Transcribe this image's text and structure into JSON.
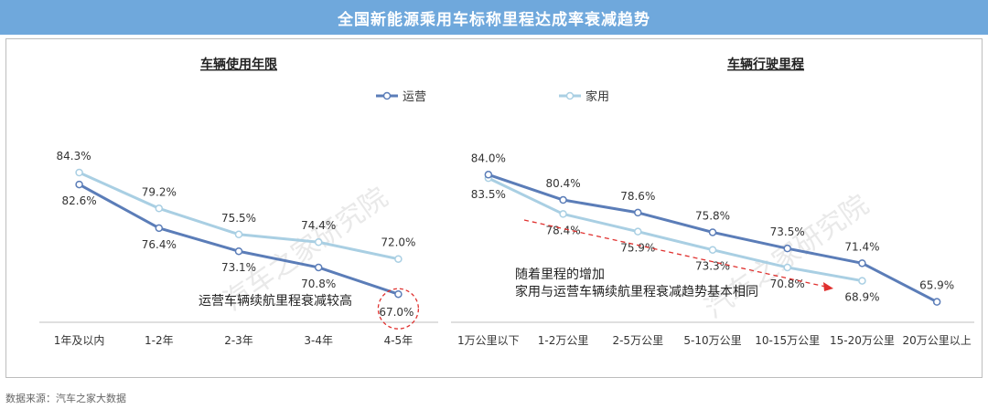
{
  "header": {
    "title": "全国新能源乘用车标称里程达成率衰减趋势"
  },
  "footer": {
    "source": "数据来源：汽车之家大数据"
  },
  "watermark": "汽车之家研究院",
  "legend": {
    "operating": "运营",
    "household": "家用"
  },
  "colors": {
    "operating": "#5b7db8",
    "household": "#a9cfe3",
    "title_bg": "#6fa8dc",
    "arrow": "#e0312f"
  },
  "chart_data": [
    {
      "type": "line",
      "title": "车辆使用年限",
      "categories": [
        "1年及以内",
        "1-2年",
        "2-3年",
        "3-4年",
        "4-5年"
      ],
      "series": [
        {
          "name": "运营",
          "values": [
            82.6,
            76.4,
            73.1,
            70.8,
            67.0
          ],
          "labels": [
            "82.6%",
            "76.4%",
            "73.1%",
            "70.8%",
            "67.0%"
          ]
        },
        {
          "name": "家用",
          "values": [
            84.3,
            79.2,
            75.5,
            74.4,
            72.0
          ],
          "labels": [
            "84.3%",
            "79.2%",
            "75.5%",
            "74.4%",
            "72.0%"
          ]
        }
      ],
      "annotation": "运营车辆续航里程衰减较高"
    },
    {
      "type": "line",
      "title": "车辆行驶里程",
      "categories": [
        "1万公里以下",
        "1-2万公里",
        "2-5万公里",
        "5-10万公里",
        "10-15万公里",
        "15-20万公里",
        "20万公里以上"
      ],
      "series": [
        {
          "name": "运营",
          "values": [
            84.0,
            80.4,
            78.6,
            75.8,
            73.5,
            71.4,
            65.9
          ],
          "labels": [
            "84.0%",
            "80.4%",
            "78.6%",
            "75.8%",
            "73.5%",
            "71.4%",
            "65.9%"
          ]
        },
        {
          "name": "家用",
          "values": [
            83.5,
            78.4,
            75.9,
            73.3,
            70.8,
            68.9,
            null
          ],
          "labels": [
            "83.5%",
            "78.4%",
            "75.9%",
            "73.3%",
            "70.8%",
            "68.9%",
            ""
          ]
        }
      ],
      "annotation": [
        "随着里程的增加",
        "家用与运营车辆续航里程衰减趋势基本相同"
      ]
    }
  ]
}
